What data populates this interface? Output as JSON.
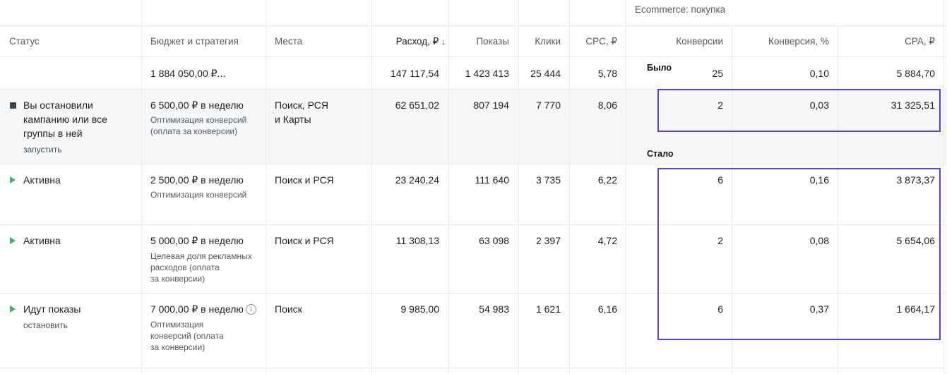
{
  "header": {
    "group_title": "Ecommerce: покупка",
    "columns": {
      "status": "Статус",
      "budget": "Бюджет и стратегия",
      "places": "Места",
      "spend": "Расход, ₽",
      "sort_arrow": "↓",
      "impressions": "Показы",
      "clicks": "Клики",
      "cpc": "CPC, ₽",
      "conversions": "Конверсии",
      "conv_rate": "Конверсия, %",
      "cpa": "CPA, ₽"
    }
  },
  "totals": {
    "budget": "1 884 050,00 ₽...",
    "spend": "147 117,54",
    "impressions": "1 423 413",
    "clicks": "25 444",
    "cpc": "5,78",
    "conversions": "25",
    "conv_rate": "0,10",
    "cpa": "5 884,70"
  },
  "annotations": {
    "before": "Было",
    "after": "Стало"
  },
  "rows": [
    {
      "status_lines": [
        "Вы остановили",
        "кампанию или все",
        "группы в ней"
      ],
      "status_action": "запустить",
      "status_icon": "stop-icon",
      "budget": "6 500,00 ₽ в неделю",
      "strategy_lines": [
        "Оптимизация конверсий",
        "(оплата за конверсии)"
      ],
      "places_lines": [
        "Поиск, РСЯ",
        "и Карты"
      ],
      "spend": "62 651,02",
      "impressions": "807 194",
      "clicks": "7 770",
      "cpc": "8,06",
      "conversions": "2",
      "conv_rate": "0,03",
      "cpa": "31 325,51"
    },
    {
      "status": "Активна",
      "status_icon": "play-icon",
      "budget": "2 500,00 ₽ в неделю",
      "strategy_lines": [
        "Оптимизация конверсий"
      ],
      "places": "Поиск и РСЯ",
      "spend": "23 240,24",
      "impressions": "111 640",
      "clicks": "3 735",
      "cpc": "6,22",
      "conversions": "6",
      "conv_rate": "0,16",
      "cpa": "3 873,37"
    },
    {
      "status": "Активна",
      "status_icon": "play-icon",
      "budget": "5 000,00 ₽ в неделю",
      "strategy_lines": [
        "Целевая доля рекламных",
        "расходов (оплата",
        "за конверсии)"
      ],
      "places": "Поиск и РСЯ",
      "spend": "11 308,13",
      "impressions": "63 098",
      "clicks": "2 397",
      "cpc": "4,72",
      "conversions": "2",
      "conv_rate": "0,08",
      "cpa": "5 654,06"
    },
    {
      "status": "Идут показы",
      "status_action": "остановить",
      "status_icon": "play-icon",
      "budget": "7 000,00 ₽ в неделю",
      "strategy_lines": [
        "Оптимизация",
        "конверсий (оплата",
        "за конверсии)"
      ],
      "places": "Поиск",
      "spend": "9 985,00",
      "impressions": "54 983",
      "clicks": "1 621",
      "cpc": "6,16",
      "conversions": "6",
      "conv_rate": "0,37",
      "cpa": "1 664,17"
    }
  ],
  "colors": {
    "accent_callout": "#5b3fd6",
    "active_status": "#3bb36b",
    "stopped_status": "#3c4150",
    "highlight_row": "#f6f7f9"
  }
}
